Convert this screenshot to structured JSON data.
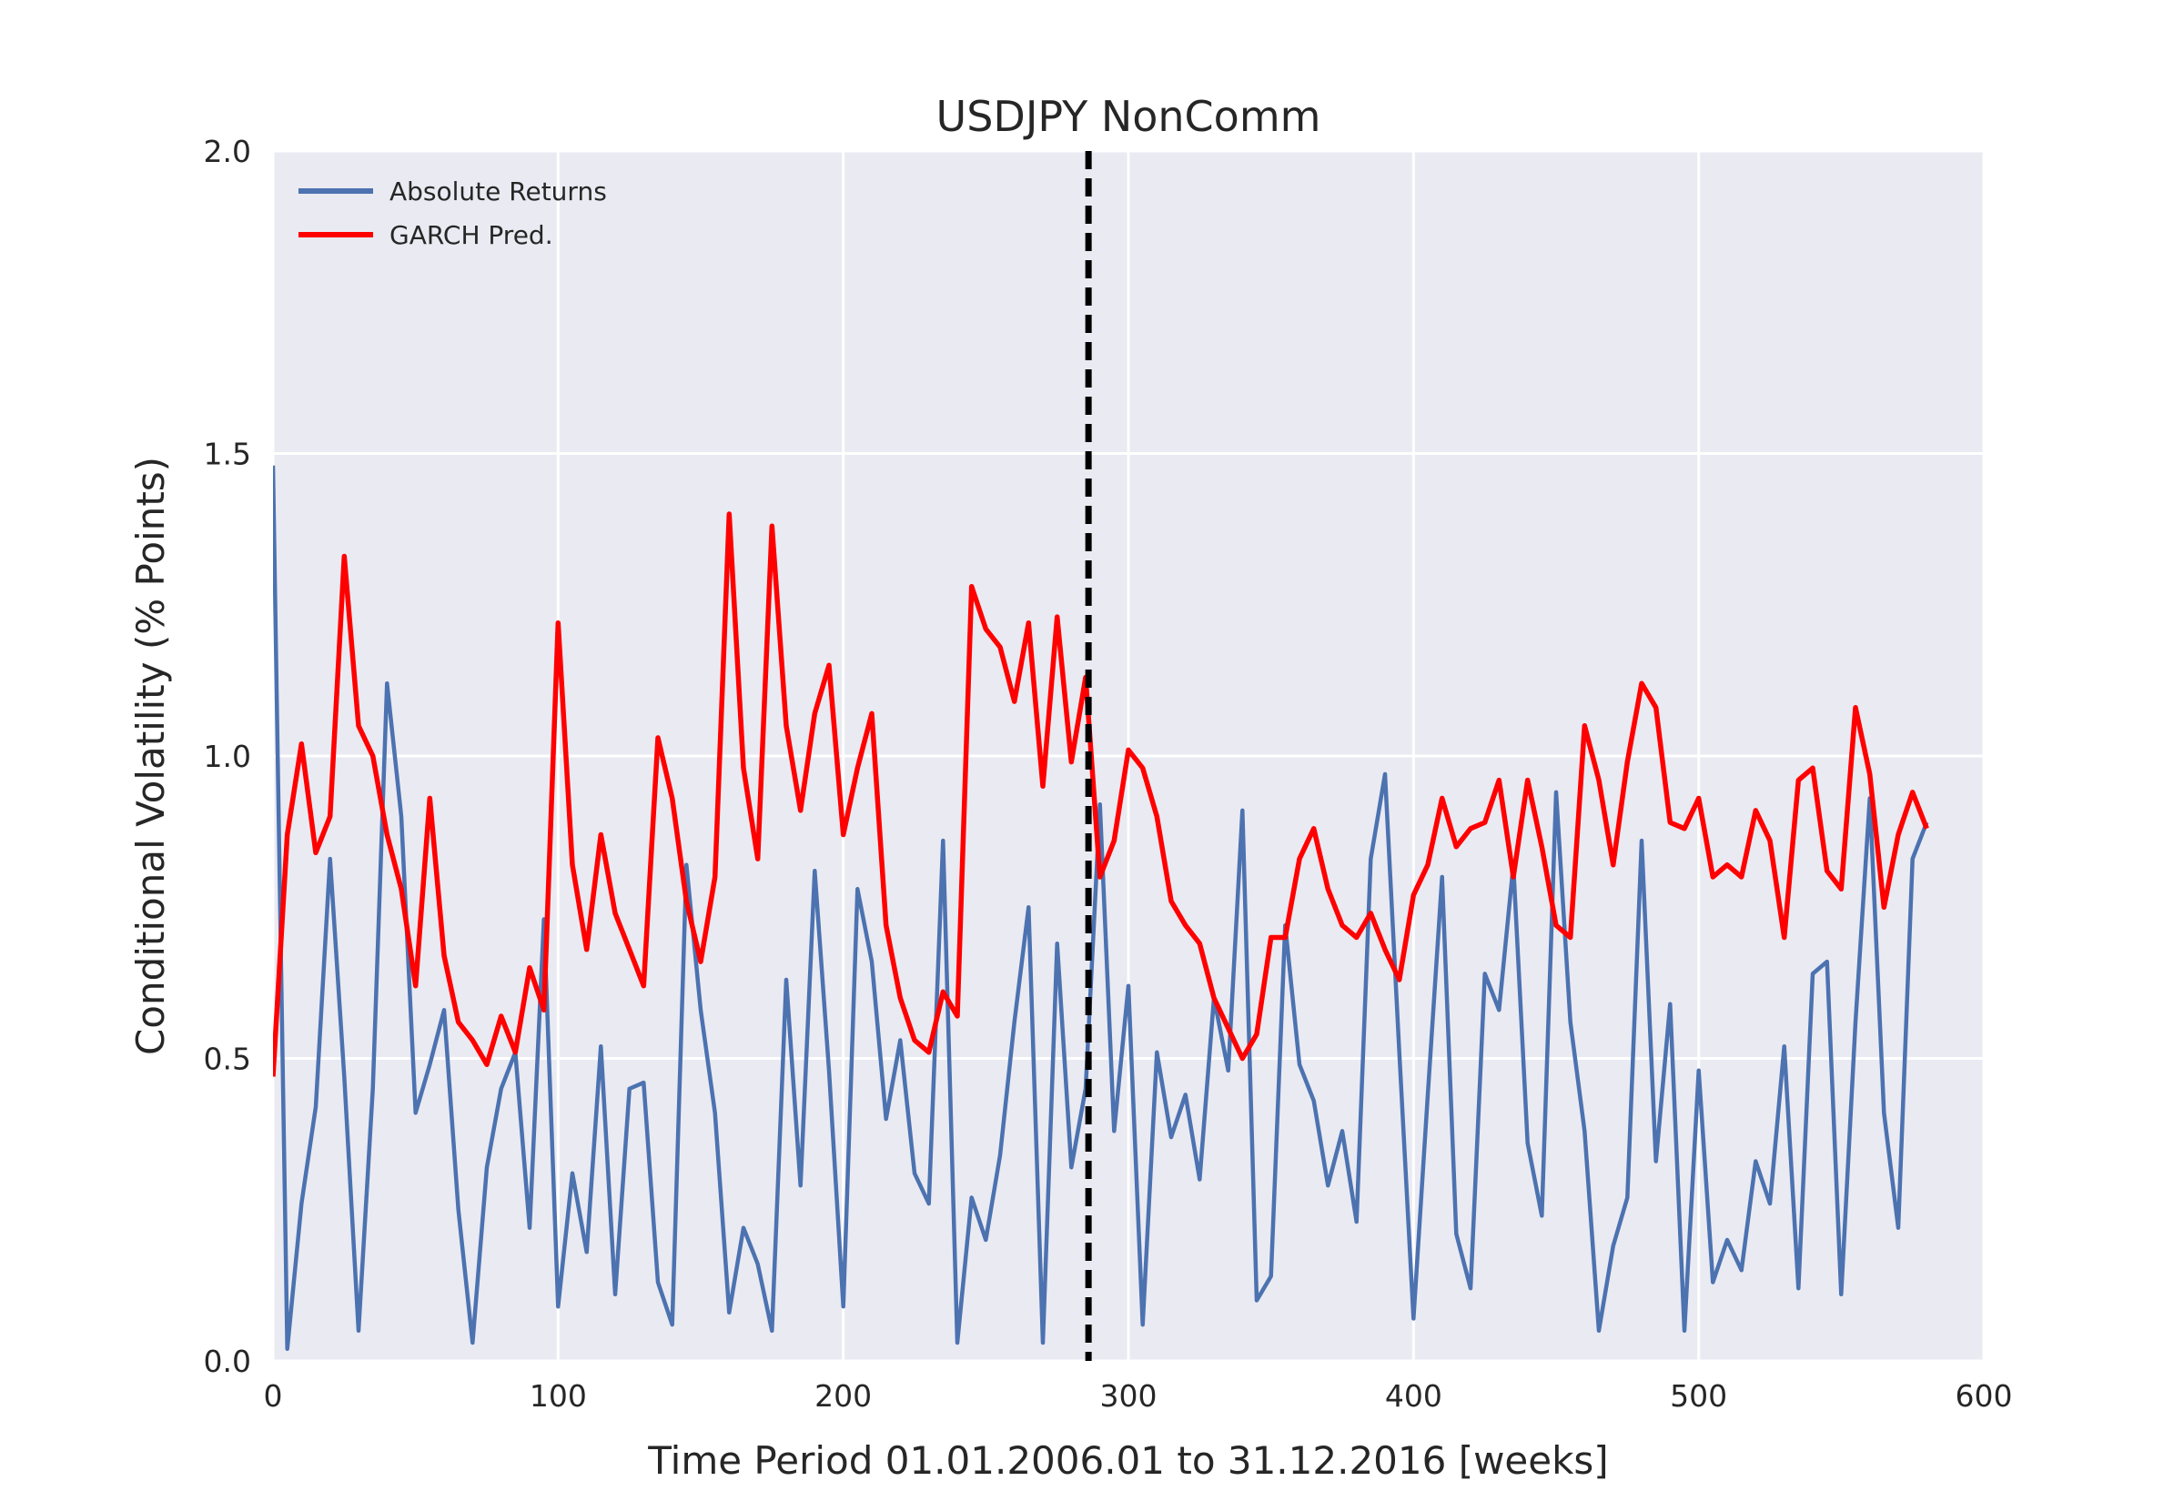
{
  "chart_data": {
    "type": "line",
    "title": "USDJPY NonComm",
    "xlabel": "Time Period 01.01.2006.01 to 31.12.2016 [weeks]",
    "ylabel": "Conditional Volatility (% Points)",
    "xlim": [
      0,
      600
    ],
    "ylim": [
      0,
      2.0
    ],
    "xticks": [
      0,
      100,
      200,
      300,
      400,
      500,
      600
    ],
    "xtick_labels": [
      "0",
      "100",
      "200",
      "300",
      "400",
      "500",
      "600"
    ],
    "yticks": [
      0.0,
      0.5,
      1.0,
      1.5,
      2.0
    ],
    "ytick_labels": [
      "0.0",
      "0.5",
      "1.0",
      "1.5",
      "2.0"
    ],
    "grid": true,
    "background": "#EAEAF2",
    "legend_position": "top-left",
    "vertical_line": {
      "x": 286,
      "style": "dashed",
      "color": "#000000"
    },
    "series": [
      {
        "name": "Absolute Returns",
        "color": "#4C72B0",
        "x_start": 0,
        "x_step": 5,
        "values": [
          1.48,
          0.02,
          0.26,
          0.42,
          0.83,
          0.47,
          0.05,
          0.45,
          1.12,
          0.9,
          0.41,
          0.49,
          0.58,
          0.25,
          0.03,
          0.32,
          0.45,
          0.51,
          0.22,
          0.73,
          0.09,
          0.31,
          0.18,
          0.52,
          0.11,
          0.45,
          0.46,
          0.13,
          0.06,
          0.82,
          0.58,
          0.41,
          0.08,
          0.22,
          0.16,
          0.05,
          0.63,
          0.29,
          0.81,
          0.48,
          0.09,
          0.78,
          0.66,
          0.4,
          0.53,
          0.31,
          0.26,
          0.86,
          0.03,
          0.27,
          0.2,
          0.34,
          0.56,
          0.75,
          0.03,
          0.69,
          0.32,
          0.45,
          0.92,
          0.38,
          0.62,
          0.06,
          0.51,
          0.37,
          0.44,
          0.3,
          0.6,
          0.48,
          0.91,
          0.1,
          0.14,
          0.72,
          0.49,
          0.43,
          0.29,
          0.38,
          0.23,
          0.83,
          0.97,
          0.51,
          0.07,
          0.44,
          0.8,
          0.21,
          0.12,
          0.64,
          0.58,
          0.82,
          0.36,
          0.24,
          0.94,
          0.56,
          0.38,
          0.05,
          0.19,
          0.27,
          0.86,
          0.33,
          0.59,
          0.05,
          0.48,
          0.13,
          0.2,
          0.15,
          0.33,
          0.26,
          0.52,
          0.12,
          0.64,
          0.66,
          0.11,
          0.56,
          0.93,
          0.41,
          0.22,
          0.83,
          0.89
        ]
      },
      {
        "name": "GARCH Pred.",
        "color": "#FF0000",
        "x_start": 0,
        "x_step": 5,
        "values": [
          0.47,
          0.87,
          1.02,
          0.84,
          0.9,
          1.33,
          1.05,
          1.0,
          0.87,
          0.78,
          0.62,
          0.93,
          0.67,
          0.56,
          0.53,
          0.49,
          0.57,
          0.51,
          0.65,
          0.58,
          1.22,
          0.82,
          0.68,
          0.87,
          0.74,
          0.68,
          0.62,
          1.03,
          0.93,
          0.76,
          0.66,
          0.8,
          1.4,
          0.98,
          0.83,
          1.38,
          1.05,
          0.91,
          1.07,
          1.15,
          0.87,
          0.98,
          1.07,
          0.72,
          0.6,
          0.53,
          0.51,
          0.61,
          0.57,
          1.28,
          1.21,
          1.18,
          1.09,
          1.22,
          0.95,
          1.23,
          0.99,
          1.13,
          0.8,
          0.86,
          1.01,
          0.98,
          0.9,
          0.76,
          0.72,
          0.69,
          0.6,
          0.55,
          0.5,
          0.54,
          0.7,
          0.7,
          0.83,
          0.88,
          0.78,
          0.72,
          0.7,
          0.74,
          0.68,
          0.63,
          0.77,
          0.82,
          0.93,
          0.85,
          0.88,
          0.89,
          0.96,
          0.8,
          0.96,
          0.85,
          0.72,
          0.7,
          1.05,
          0.96,
          0.82,
          0.99,
          1.12,
          1.08,
          0.89,
          0.88,
          0.93,
          0.8,
          0.82,
          0.8,
          0.91,
          0.86,
          0.7,
          0.96,
          0.98,
          0.81,
          0.78,
          1.08,
          0.97,
          0.75,
          0.87,
          0.94,
          0.88
        ]
      }
    ]
  }
}
